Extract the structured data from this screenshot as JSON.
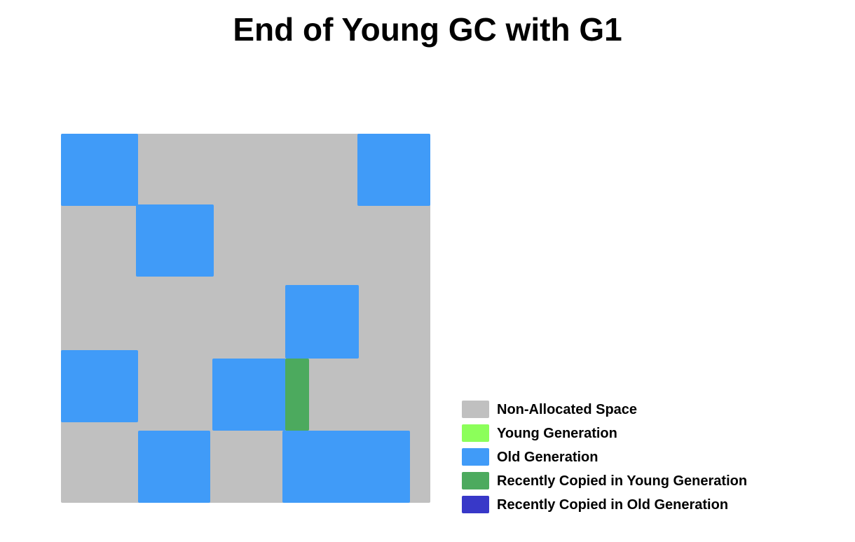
{
  "title": "End of Young GC with G1",
  "colors": {
    "non_allocated": "#c0c0c0",
    "young": "#8cff5a",
    "old": "#409bf8",
    "copied_young": "#4caa5e",
    "copied_old": "#3838c8"
  },
  "legend": [
    {
      "label": "Non-Allocated Space",
      "color": "#c0c0c0"
    },
    {
      "label": "Young Generation",
      "color": "#8cff5a"
    },
    {
      "label": "Old Generation",
      "color": "#409bf8"
    },
    {
      "label": "Recently Copied in Young Generation",
      "color": "#4caa5e"
    },
    {
      "label": "Recently Copied in Old Generation",
      "color": "#3838c8"
    }
  ]
}
